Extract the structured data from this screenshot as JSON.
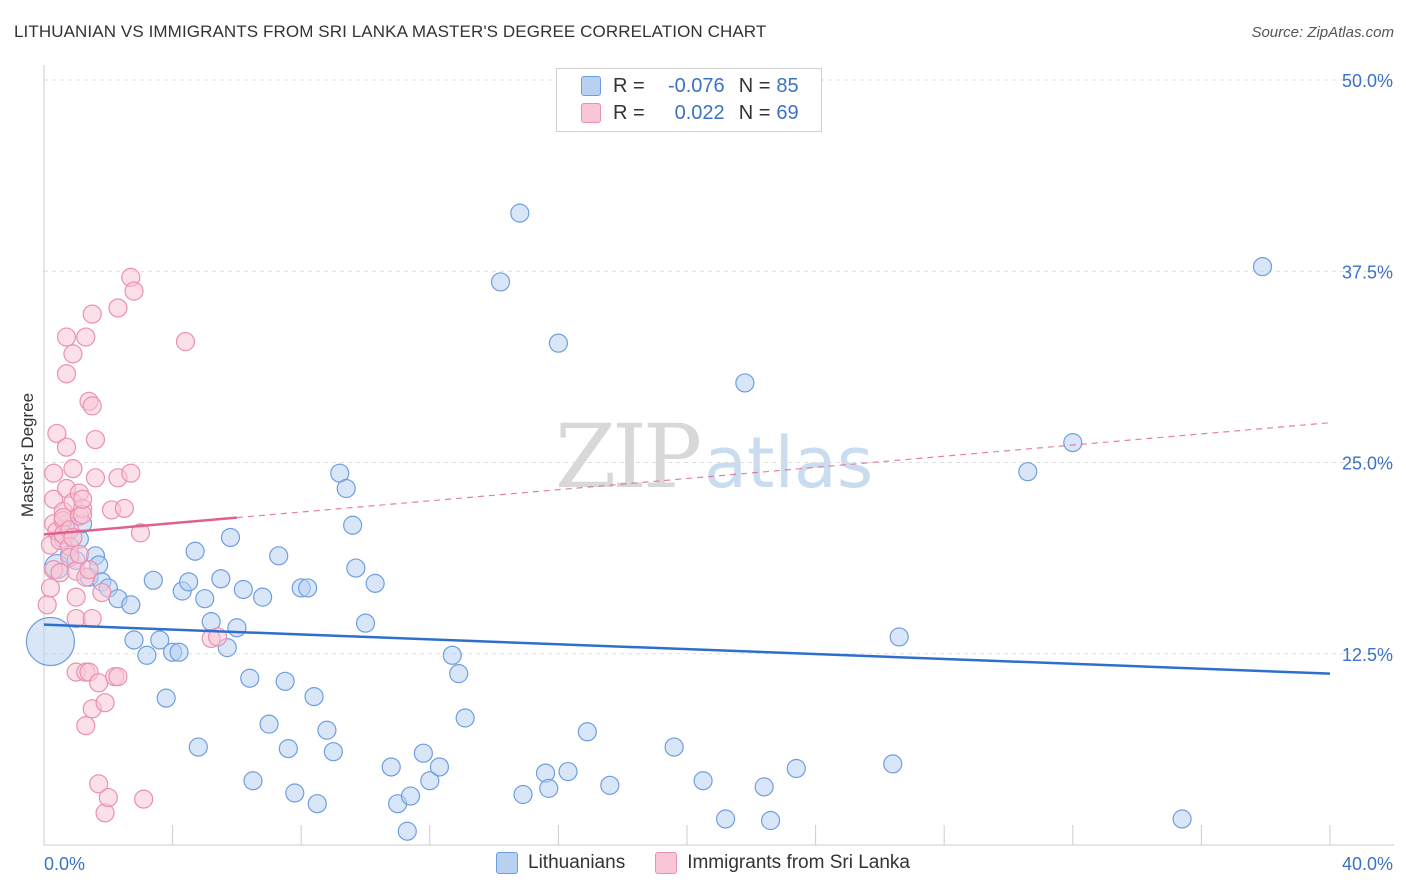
{
  "title": "LITHUANIAN VS IMMIGRANTS FROM SRI LANKA MASTER'S DEGREE CORRELATION CHART",
  "source": "Source: ZipAtlas.com",
  "watermark": {
    "zip": "ZIP",
    "atlas": "atlas"
  },
  "stats": {
    "rows": [
      {
        "swatch": "blue",
        "r_label": "R =",
        "r_value": "-0.076",
        "n_label": "N =",
        "n_value": "85"
      },
      {
        "swatch": "pink",
        "r_label": "R =",
        "r_value": "0.022",
        "n_label": "N =",
        "n_value": "69"
      }
    ]
  },
  "legend": {
    "items": [
      {
        "label": "Lithuanians",
        "color": "blue"
      },
      {
        "label": "Immigrants from Sri Lanka",
        "color": "pink"
      }
    ]
  },
  "colors": {
    "blue_fill": "#b8d1f0",
    "blue_stroke": "#6f9ee0",
    "blue_line": "#2f6fcc",
    "pink_fill": "#f8c6d6",
    "pink_stroke": "#ec8fb0",
    "pink_line": "#e0608c",
    "grid": "#dddddd",
    "axis_text": "#3b72c4"
  },
  "chart_data": {
    "type": "scatter",
    "title": "LITHUANIAN VS IMMIGRANTS FROM SRI LANKA MASTER'S DEGREE CORRELATION CHART",
    "xlabel": "",
    "ylabel": "Master's Degree",
    "xlim": [
      0,
      40
    ],
    "ylim": [
      0,
      50
    ],
    "x_tick_labels": [
      "0.0%",
      "40.0%"
    ],
    "y_ticks": [
      12.5,
      25.0,
      37.5,
      50.0
    ],
    "y_tick_labels": [
      "12.5%",
      "25.0%",
      "37.5%",
      "50.0%"
    ],
    "grid": true,
    "legend_position": "bottom-center",
    "series": [
      {
        "name": "Lithuanians",
        "color": "blue",
        "trend": {
          "x": [
            0,
            40
          ],
          "y": [
            14.4,
            11.2
          ],
          "dashed_extension": false
        },
        "points": [
          [
            0.2,
            13.3,
            24
          ],
          [
            0.4,
            18.2,
            12
          ],
          [
            0.6,
            20.0,
            9
          ],
          [
            0.7,
            21.0,
            9
          ],
          [
            0.8,
            19.0,
            9
          ],
          [
            1.0,
            18.6,
            9
          ],
          [
            1.1,
            20.0,
            9
          ],
          [
            1.2,
            21.0,
            9
          ],
          [
            1.4,
            17.5,
            9
          ],
          [
            1.6,
            18.9,
            9
          ],
          [
            1.7,
            18.3,
            9
          ],
          [
            1.8,
            17.2,
            9
          ],
          [
            2.0,
            16.8,
            9
          ],
          [
            2.3,
            16.1,
            9
          ],
          [
            2.7,
            15.7,
            9
          ],
          [
            2.8,
            13.4,
            9
          ],
          [
            3.2,
            12.4,
            9
          ],
          [
            3.4,
            17.3,
            9
          ],
          [
            3.6,
            13.4,
            9
          ],
          [
            3.8,
            9.6,
            9
          ],
          [
            4.0,
            12.6,
            9
          ],
          [
            4.2,
            12.6,
            9
          ],
          [
            4.3,
            16.6,
            9
          ],
          [
            4.5,
            17.2,
            9
          ],
          [
            4.7,
            19.2,
            9
          ],
          [
            4.8,
            6.4,
            9
          ],
          [
            5.0,
            16.1,
            9
          ],
          [
            5.2,
            14.6,
            9
          ],
          [
            5.5,
            17.4,
            9
          ],
          [
            5.7,
            12.9,
            9
          ],
          [
            5.8,
            20.1,
            9
          ],
          [
            6.0,
            14.2,
            9
          ],
          [
            6.2,
            16.7,
            9
          ],
          [
            6.4,
            10.9,
            9
          ],
          [
            6.5,
            4.2,
            9
          ],
          [
            6.8,
            16.2,
            9
          ],
          [
            7.0,
            7.9,
            9
          ],
          [
            7.3,
            18.9,
            9
          ],
          [
            7.5,
            10.7,
            9
          ],
          [
            7.6,
            6.3,
            9
          ],
          [
            7.8,
            3.4,
            9
          ],
          [
            8.0,
            16.8,
            9
          ],
          [
            8.2,
            16.8,
            9
          ],
          [
            8.4,
            9.7,
            9
          ],
          [
            8.5,
            2.7,
            9
          ],
          [
            8.8,
            7.5,
            9
          ],
          [
            9.0,
            6.1,
            9
          ],
          [
            9.2,
            24.3,
            9
          ],
          [
            9.4,
            23.3,
            9
          ],
          [
            9.6,
            20.9,
            9
          ],
          [
            9.7,
            18.1,
            9
          ],
          [
            10.0,
            14.5,
            9
          ],
          [
            10.3,
            17.1,
            9
          ],
          [
            10.8,
            5.1,
            9
          ],
          [
            11.0,
            2.7,
            9
          ],
          [
            11.3,
            0.9,
            9
          ],
          [
            11.4,
            3.2,
            9
          ],
          [
            11.8,
            6.0,
            9
          ],
          [
            12.0,
            4.2,
            9
          ],
          [
            12.3,
            5.1,
            9
          ],
          [
            12.7,
            12.4,
            9
          ],
          [
            12.9,
            11.2,
            9
          ],
          [
            13.1,
            8.3,
            9
          ],
          [
            14.2,
            36.8,
            9
          ],
          [
            14.8,
            41.3,
            9
          ],
          [
            14.9,
            3.3,
            9
          ],
          [
            15.6,
            4.7,
            9
          ],
          [
            15.7,
            3.7,
            9
          ],
          [
            16.0,
            32.8,
            9
          ],
          [
            16.3,
            4.8,
            9
          ],
          [
            16.9,
            7.4,
            9
          ],
          [
            17.6,
            3.9,
            9
          ],
          [
            19.6,
            6.4,
            9
          ],
          [
            20.5,
            4.2,
            9
          ],
          [
            21.2,
            1.7,
            9
          ],
          [
            21.8,
            30.2,
            9
          ],
          [
            22.4,
            3.8,
            9
          ],
          [
            22.6,
            1.6,
            9
          ],
          [
            23.4,
            5.0,
            9
          ],
          [
            26.4,
            5.3,
            9
          ],
          [
            26.6,
            13.6,
            9
          ],
          [
            30.6,
            24.4,
            9
          ],
          [
            32.0,
            26.3,
            9
          ],
          [
            35.4,
            1.7,
            9
          ],
          [
            37.9,
            37.8,
            9
          ]
        ]
      },
      {
        "name": "Immigrants from Sri Lanka",
        "color": "pink",
        "trend": {
          "x": [
            0,
            6
          ],
          "y": [
            20.3,
            21.4
          ],
          "dashed_extension": {
            "x": [
              6,
              40
            ],
            "y": [
              21.4,
              27.6
            ]
          }
        },
        "points": [
          [
            0.1,
            15.7,
            9
          ],
          [
            0.2,
            16.8,
            9
          ],
          [
            0.2,
            19.6,
            9
          ],
          [
            0.3,
            21.0,
            9
          ],
          [
            0.3,
            22.6,
            9
          ],
          [
            0.3,
            18.0,
            9
          ],
          [
            0.3,
            24.3,
            9
          ],
          [
            0.4,
            26.9,
            9
          ],
          [
            0.4,
            20.5,
            9
          ],
          [
            0.5,
            17.8,
            9
          ],
          [
            0.5,
            19.9,
            9
          ],
          [
            0.6,
            21.8,
            9
          ],
          [
            0.6,
            21.2,
            9
          ],
          [
            0.6,
            21.4,
            9
          ],
          [
            0.6,
            20.3,
            9
          ],
          [
            0.7,
            23.3,
            9
          ],
          [
            0.7,
            26.0,
            9
          ],
          [
            0.7,
            33.2,
            9
          ],
          [
            0.7,
            30.8,
            9
          ],
          [
            0.8,
            20.6,
            9
          ],
          [
            0.8,
            19.5,
            9
          ],
          [
            0.8,
            18.8,
            9
          ],
          [
            0.9,
            24.6,
            9
          ],
          [
            0.9,
            22.4,
            9
          ],
          [
            0.9,
            32.1,
            9
          ],
          [
            0.9,
            20.1,
            9
          ],
          [
            1.0,
            17.9,
            9
          ],
          [
            1.0,
            16.2,
            9
          ],
          [
            1.0,
            14.8,
            9
          ],
          [
            1.0,
            11.3,
            9
          ],
          [
            1.1,
            23.0,
            9
          ],
          [
            1.1,
            21.5,
            9
          ],
          [
            1.1,
            19.0,
            9
          ],
          [
            1.2,
            22.0,
            9
          ],
          [
            1.2,
            21.6,
            9
          ],
          [
            1.2,
            22.6,
            9
          ],
          [
            1.3,
            17.5,
            9
          ],
          [
            1.3,
            11.3,
            9
          ],
          [
            1.3,
            7.8,
            9
          ],
          [
            1.3,
            33.2,
            9
          ],
          [
            1.4,
            18.0,
            9
          ],
          [
            1.4,
            11.3,
            9
          ],
          [
            1.4,
            29.0,
            9
          ],
          [
            1.5,
            34.7,
            9
          ],
          [
            1.5,
            14.8,
            9
          ],
          [
            1.5,
            28.7,
            9
          ],
          [
            1.5,
            8.9,
            9
          ],
          [
            1.6,
            26.5,
            9
          ],
          [
            1.6,
            24.0,
            9
          ],
          [
            1.7,
            10.6,
            9
          ],
          [
            1.7,
            4.0,
            9
          ],
          [
            1.8,
            16.5,
            9
          ],
          [
            1.9,
            2.1,
            9
          ],
          [
            1.9,
            9.3,
            9
          ],
          [
            2.0,
            3.1,
            9
          ],
          [
            2.1,
            21.9,
            9
          ],
          [
            2.2,
            11.0,
            9
          ],
          [
            2.3,
            24.0,
            9
          ],
          [
            2.3,
            35.1,
            9
          ],
          [
            2.3,
            11.0,
            9
          ],
          [
            2.5,
            22.0,
            9
          ],
          [
            2.7,
            37.1,
            9
          ],
          [
            2.7,
            24.3,
            9
          ],
          [
            2.8,
            36.2,
            9
          ],
          [
            3.0,
            20.4,
            9
          ],
          [
            3.1,
            3.0,
            9
          ],
          [
            4.4,
            32.9,
            9
          ],
          [
            5.2,
            13.5,
            9
          ],
          [
            5.4,
            13.6,
            9
          ]
        ]
      }
    ]
  }
}
